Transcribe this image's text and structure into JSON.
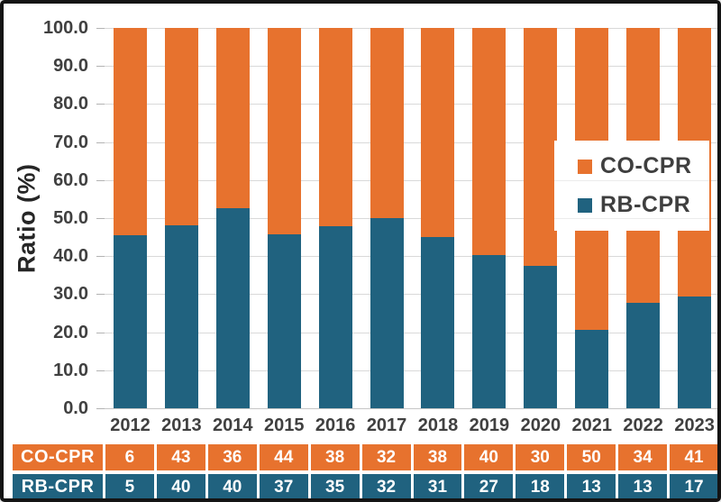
{
  "chart_data": {
    "type": "bar",
    "stacking": "100%",
    "title": "",
    "xlabel": "",
    "ylabel": "Ratio (%)",
    "categories": [
      "2012",
      "2013",
      "2014",
      "2015",
      "2016",
      "2017",
      "2018",
      "2019",
      "2020",
      "2021",
      "2022",
      "2023"
    ],
    "series": [
      {
        "name": "CO-CPR",
        "color": "#E7722E",
        "values": [
          6,
          43,
          36,
          44,
          38,
          32,
          38,
          40,
          30,
          50,
          34,
          41
        ]
      },
      {
        "name": "RB-CPR",
        "color": "#20627F",
        "values": [
          5,
          40,
          40,
          37,
          35,
          32,
          31,
          27,
          18,
          13,
          13,
          17
        ]
      }
    ],
    "rb_cpr_bar_height_percent": [
      45.5,
      48.2,
      52.6,
      45.7,
      47.9,
      50.0,
      44.9,
      40.3,
      37.5,
      20.6,
      27.7,
      29.3
    ],
    "y_axis": {
      "range": [
        0,
        100
      ],
      "tick_step": 10,
      "tick_labels": [
        "0.0",
        "10.0",
        "20.0",
        "30.0",
        "40.0",
        "50.0",
        "60.0",
        "70.0",
        "80.0",
        "90.0",
        "100.0"
      ],
      "grid": true
    },
    "legend": {
      "position": "inside-right",
      "entries": [
        "CO-CPR",
        "RB-CPR"
      ]
    }
  },
  "table": {
    "row_labels": [
      "CO-CPR",
      "RB-CPR"
    ]
  },
  "colors": {
    "co_cpr": "#E7722E",
    "rb_cpr": "#20627F",
    "gridline": "#D9D9D9",
    "axis_text": "#404040",
    "frame_border": "#141414",
    "table_text": "#FFFFFF",
    "background": "#FFFFFF"
  }
}
